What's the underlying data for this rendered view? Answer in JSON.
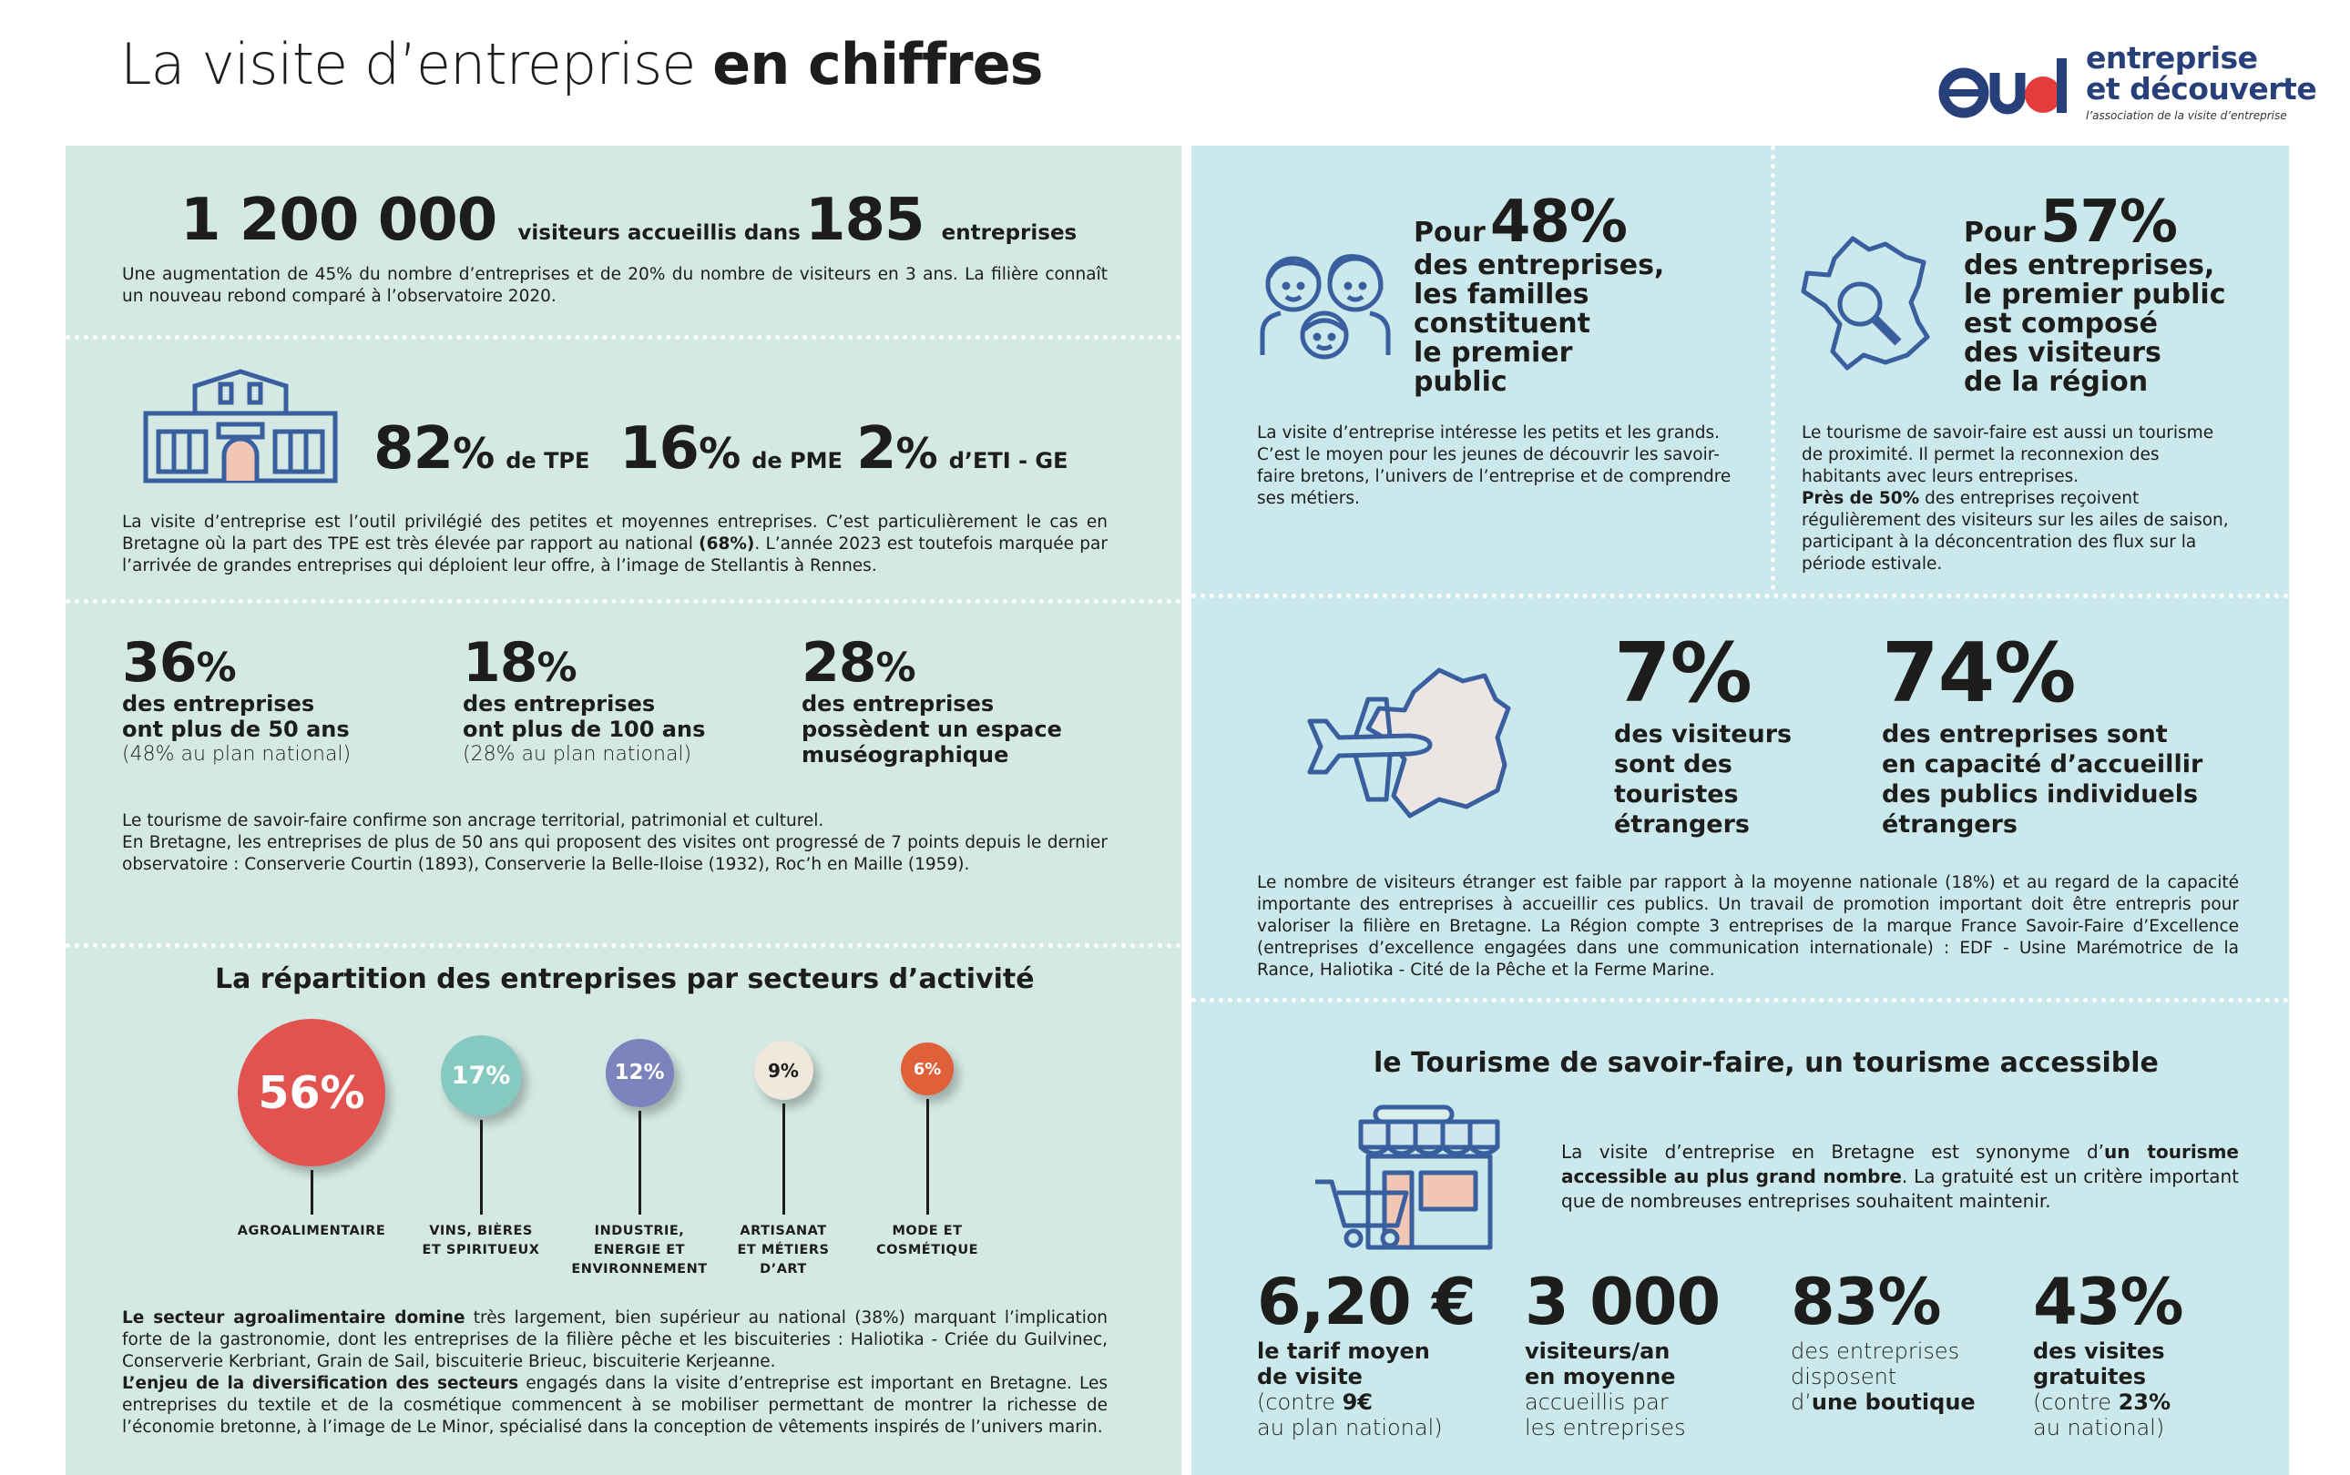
{
  "header": {
    "title_light": "La visite d’entreprise ",
    "title_bold": "en chiffres",
    "logo_line1": "entreprise",
    "logo_line2": "et découverte",
    "logo_tagline": "l’association de la visite d’entreprise"
  },
  "colors": {
    "left_bg": "#d4e9e3",
    "right_bg": "#cbe8ec",
    "icon_blue": "#3a5f9e",
    "logo_blue": "#27407a",
    "logo_red": "#e63b3b"
  },
  "visitors": {
    "number": "1 200 000",
    "label1": "visiteurs accueillis dans",
    "companies": "185",
    "label2": "entreprises",
    "text": "Une augmentation de 45% du nombre d’entreprises et de 20% du nombre de visiteurs en 3 ans. La filière connaît un nouveau rebond comparé à l’observatoire 2020."
  },
  "sizes": {
    "icon": "building-icon",
    "tpe_value": "82",
    "tpe_unit": "%",
    "tpe_label": "de TPE",
    "pme_value": "16",
    "pme_unit": "%",
    "pme_label": "de PME",
    "eti_value": "2",
    "eti_unit": "%",
    "eti_label": "d’ETI - GE",
    "text_before": "La visite d’entreprise est l’outil privilégié des petites et moyennes entreprises. C’est particulièrement le cas en Bretagne où la part des TPE est très élevée par rapport au national ",
    "text_bold": "(68%)",
    "text_after": ". L’année 2023 est toutefois marquée par l’arrivée de grandes entreprises qui déploient leur offre, à l’image de Stellantis à Rennes."
  },
  "age": {
    "items": [
      {
        "value": "36",
        "unit": "%",
        "line1": "des entreprises",
        "line2": "ont plus de 50 ans",
        "note": "(48% au plan national)"
      },
      {
        "value": "18",
        "unit": "%",
        "line1": "des entreprises",
        "line2": "ont plus de 100 ans",
        "note": "(28% au plan national)"
      },
      {
        "value": "28",
        "unit": "%",
        "line1": "des entreprises",
        "line2": "possèdent un espace",
        "line3": "muséographique"
      }
    ],
    "text1": "Le tourisme de savoir-faire confirme son ancrage territorial, patrimonial et culturel.",
    "text2": "En Bretagne, les entreprises de plus de 50 ans qui proposent des visites ont progressé de 7 points depuis le dernier observatoire : Conserverie Courtin (1893), Conserverie la Belle-Iloise  (1932), Roc’h en Maille (1959)."
  },
  "sectors": {
    "title": "La répartition des entreprises par secteurs d’activité",
    "items": [
      {
        "value": "56%",
        "share": 56,
        "color": "#e2534f",
        "lines": [
          "AGROALIMENTAIRE"
        ]
      },
      {
        "value": "17%",
        "share": 17,
        "color": "#86c9c1",
        "lines": [
          "VINS, BIÈRES",
          "ET SPIRITUEUX"
        ]
      },
      {
        "value": "12%",
        "share": 12,
        "color": "#7d83bd",
        "lines": [
          "INDUSTRIE,",
          "ENERGIE ET",
          "ENVIRONNEMENT"
        ]
      },
      {
        "value": "9%",
        "share": 9,
        "color": "#efe8dc",
        "lines": [
          "ARTISANAT",
          "ET MÉTIERS",
          "D’ART"
        ]
      },
      {
        "value": "6%",
        "share": 6,
        "color": "#e0603a",
        "lines": [
          "MODE ET",
          "COSMÉTIQUE"
        ]
      }
    ],
    "p1_bold": "Le secteur agroalimentaire domine",
    "p1_text": " très largement, bien supérieur au national (38%) marquant l’implication forte de la gastronomie, dont les entreprises de la filière pêche et les biscuiteries : Haliotika - Criée du Guilvinec, Conserverie Kerbriant, Grain de Sail, biscuiterie Brieuc, biscuiterie Kerjeanne.",
    "p2_bold": "L’enjeu de la diversification des secteurs",
    "p2_text": " engagés dans la visite d’entreprise est important en Bretagne. Les entreprises du textile et de la cosmétique commencent à se mobiliser permettant de montrer la richesse de l’économie bretonne, à l’image de Le Minor, spécialisé dans la conception de vêtements inspirés de l’univers marin."
  },
  "families": {
    "icon": "family-icon",
    "prefix": "Pour",
    "value": "48%",
    "lines": [
      "des entreprises,",
      "les familles",
      "constituent",
      "le premier",
      "public"
    ],
    "text": "La visite d’entreprise intéresse les petits et les grands. C’est le moyen pour les jeunes de découvrir les savoir-faire bretons, l’univers de l’entreprise et de comprendre ses métiers."
  },
  "region": {
    "icon": "france-search-icon",
    "prefix": "Pour",
    "value": "57%",
    "lines": [
      "des entreprises,",
      "le premier public",
      "est composé",
      "des visiteurs",
      "de la région"
    ],
    "text1": "Le tourisme de savoir-faire est aussi un tourisme de proximité. Il permet la reconnexion des habitants avec leurs entreprises.",
    "text2_bold": "Près de 50%",
    "text2": " des entreprises reçoivent régulièrement des visiteurs sur les ailes de saison, participant à la déconcentration des flux sur la période estivale."
  },
  "foreign": {
    "icon": "plane-france-icon",
    "v1": "7%",
    "l1": [
      "des visiteurs",
      "sont des",
      "touristes",
      "étrangers"
    ],
    "v2": "74%",
    "l2": [
      "des entreprises sont",
      "en capacité d’accueillir",
      "des publics individuels",
      "étrangers"
    ],
    "text": "Le nombre de visiteurs étranger est faible par rapport à la moyenne nationale (18%) et au regard de la capacité importante des entreprises à accueillir ces publics. Un travail de promotion important doit être entrepris pour valoriser la filière en Bretagne. La Région compte 3 entreprises de la marque France Savoir-Faire d’Excellence (entreprises d’excellence engagées dans une communication internationale) :  EDF - Usine Marémotrice de la Rance,  Haliotika - Cité de la Pêche et la Ferme Marine."
  },
  "accessible": {
    "title": "le Tourisme de savoir-faire, un tourisme accessible",
    "icon": "shop-cart-icon",
    "text_a": "La visite d’entreprise en Bretagne est synonyme d’",
    "text_bold": "un tourisme accessible au plus grand nombre",
    "text_b": ". La gratuité est un critère important que de nombreuses entreprises souhaitent maintenir.",
    "stats": [
      {
        "value": "6,20 €",
        "l1": "le tarif moyen",
        "l2": "de visite",
        "l3": "(contre ",
        "l3b": "9€",
        "l4": "au plan national)"
      },
      {
        "value": "3 000",
        "l1": "visiteurs/an",
        "l2": "en moyenne",
        "l3": "accueillis par",
        "l4": "les entreprises"
      },
      {
        "value": "83%",
        "l1": "des entreprises",
        "l2": "disposent",
        "l3": "d’",
        "l3b": "une boutique"
      },
      {
        "value": "43%",
        "l1": "des visites",
        "l2": "gratuites",
        "l3": "(contre ",
        "l3b": "23%",
        "l4": "au national)"
      }
    ]
  }
}
